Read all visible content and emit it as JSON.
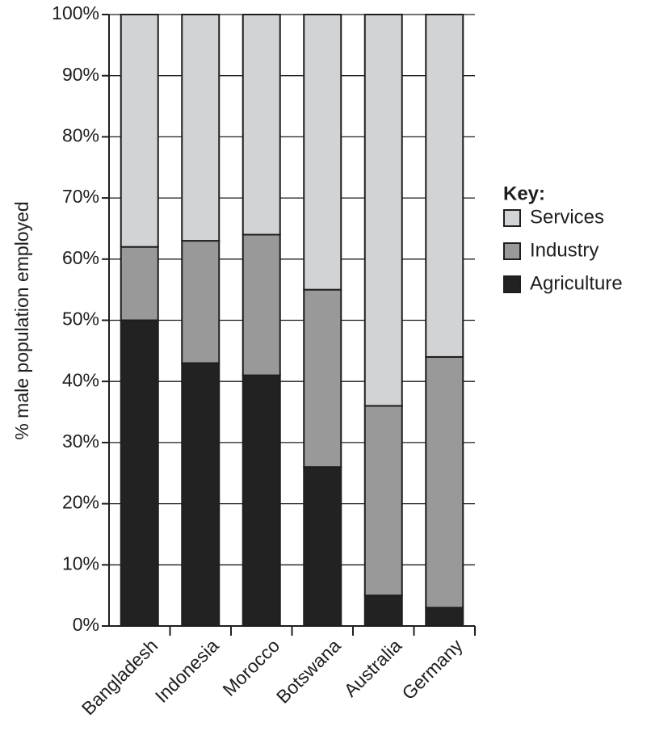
{
  "chart_data": {
    "type": "bar",
    "stacked": true,
    "categories": [
      "Bangladesh",
      "Indonesia",
      "Morocco",
      "Botswana",
      "Australia",
      "Germany"
    ],
    "series": [
      {
        "name": "Agriculture",
        "values": [
          50,
          43,
          41,
          26,
          5,
          3
        ],
        "color": "#222222"
      },
      {
        "name": "Industry",
        "values": [
          12,
          20,
          23,
          29,
          31,
          41
        ],
        "color": "#999999"
      },
      {
        "name": "Services",
        "values": [
          38,
          37,
          36,
          45,
          64,
          56
        ],
        "color": "#d2d3d5"
      }
    ],
    "title": "",
    "xlabel": "",
    "ylabel": "% male population employed",
    "ylim": [
      0,
      100
    ],
    "yticks": [
      "0%",
      "10%",
      "20%",
      "30%",
      "40%",
      "50%",
      "60%",
      "70%",
      "80%",
      "90%",
      "100%"
    ],
    "grid": true,
    "legend": {
      "title": "Key:",
      "position": "right",
      "items": [
        "Services",
        "Industry",
        "Agriculture"
      ]
    }
  }
}
